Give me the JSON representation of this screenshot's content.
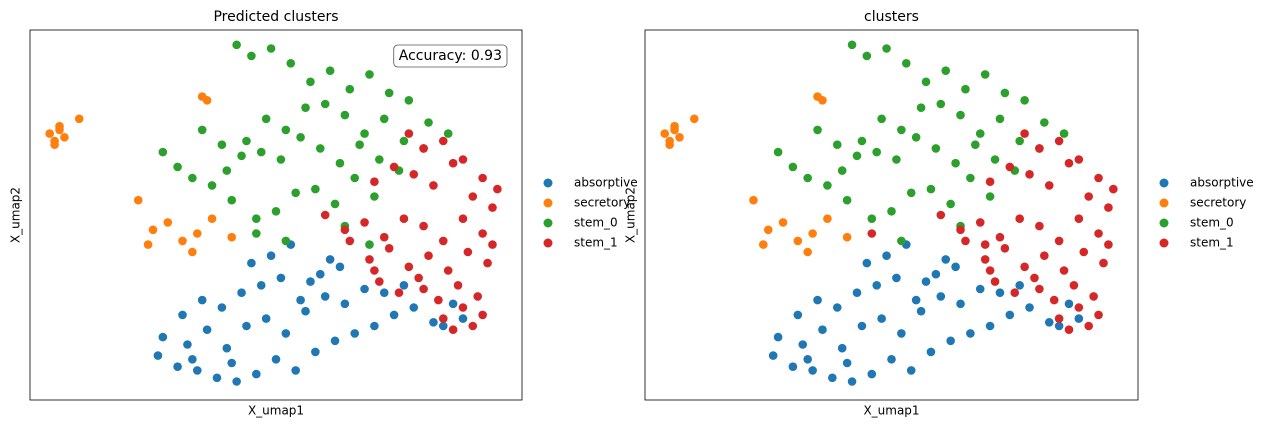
{
  "chart_data": [
    {
      "type": "scatter",
      "title": "Predicted clusters",
      "xlabel": "X_umap1",
      "ylabel": "X_umap2",
      "annotation": "Accuracy: 0.93",
      "xlim": [
        0,
        10
      ],
      "ylim": [
        0,
        10
      ],
      "series": [
        {
          "name": "absorptive",
          "color": "#1f77b4",
          "x": [
            2.6,
            3.0,
            3.4,
            3.8,
            4.2,
            4.6,
            5.0,
            5.4,
            5.8,
            6.2,
            6.6,
            7.0,
            7.4,
            7.8,
            8.2,
            8.6,
            2.7,
            3.2,
            3.6,
            4.0,
            4.4,
            4.8,
            5.2,
            5.6,
            6.0,
            6.4,
            6.8,
            7.2,
            3.1,
            3.5,
            3.9,
            4.3,
            4.7,
            5.1,
            5.5,
            5.9,
            6.3,
            4.5,
            4.9,
            5.3,
            5.7,
            6.1,
            3.3,
            4.1,
            8.8,
            8.4,
            7.6
          ],
          "values": [
            1.2,
            0.9,
            0.8,
            0.6,
            0.5,
            0.7,
            1.1,
            0.8,
            1.3,
            1.6,
            1.8,
            2.0,
            2.3,
            2.5,
            2.1,
            2.6,
            1.7,
            1.5,
            1.9,
            1.4,
            2.0,
            2.2,
            1.8,
            2.4,
            2.8,
            2.6,
            3.0,
            2.9,
            2.3,
            2.7,
            2.5,
            2.9,
            3.1,
            3.3,
            2.7,
            3.4,
            3.6,
            3.7,
            3.9,
            4.2,
            3.2,
            3.8,
            1.1,
            1.0,
            2.2,
            2.0,
            3.1
          ]
        },
        {
          "name": "secretory",
          "color": "#ff7f0e",
          "x": [
            0.4,
            0.5,
            0.6,
            0.7,
            0.5,
            0.6,
            1.0,
            3.5,
            3.6,
            2.2,
            2.5,
            2.8,
            3.1,
            3.4,
            3.7,
            4.1,
            2.4,
            3.3
          ],
          "values": [
            7.2,
            7.0,
            7.3,
            7.1,
            6.9,
            7.4,
            7.6,
            8.2,
            8.1,
            5.4,
            4.6,
            4.8,
            4.3,
            4.5,
            4.9,
            4.4,
            4.2,
            4.0
          ]
        },
        {
          "name": "stem_0",
          "color": "#2ca02c",
          "x": [
            4.2,
            4.5,
            4.9,
            5.3,
            5.7,
            6.1,
            6.5,
            6.9,
            7.3,
            7.7,
            8.1,
            8.5,
            2.7,
            3.0,
            3.3,
            3.7,
            4.0,
            4.4,
            4.8,
            5.2,
            5.6,
            6.0,
            6.4,
            6.8,
            7.2,
            7.6,
            8.0,
            3.5,
            3.9,
            4.3,
            4.7,
            5.1,
            5.5,
            5.9,
            6.3,
            6.7,
            7.1,
            7.5,
            4.1,
            4.6,
            5.0,
            5.4,
            5.8,
            6.2,
            6.6,
            7.0,
            4.6,
            5.2,
            6.4,
            6.9
          ],
          "values": [
            9.6,
            9.3,
            9.5,
            9.1,
            8.6,
            8.9,
            8.4,
            8.8,
            8.3,
            8.1,
            7.5,
            7.2,
            6.7,
            6.3,
            6.0,
            5.8,
            6.2,
            7.0,
            7.6,
            7.3,
            7.9,
            8.0,
            7.7,
            7.2,
            7.6,
            7.0,
            6.8,
            7.3,
            6.9,
            6.6,
            6.7,
            6.5,
            7.1,
            6.8,
            6.4,
            6.9,
            6.5,
            6.2,
            5.4,
            4.9,
            5.1,
            5.6,
            5.7,
            5.3,
            6.0,
            5.5,
            4.5,
            4.3,
            4.7,
            4.2
          ]
        },
        {
          "name": "stem_1",
          "color": "#d62728",
          "x": [
            7.7,
            8.0,
            8.4,
            8.8,
            9.2,
            9.5,
            7.0,
            7.4,
            7.8,
            8.2,
            8.6,
            9.0,
            9.4,
            6.0,
            6.4,
            6.8,
            7.2,
            7.6,
            8.0,
            8.4,
            8.8,
            9.2,
            6.9,
            7.3,
            7.7,
            8.1,
            8.5,
            8.9,
            9.3,
            7.1,
            7.5,
            7.9,
            8.3,
            8.7,
            9.1,
            8.4,
            8.8,
            9.2,
            8.6,
            9.0,
            6.5,
            7.0,
            8.0,
            9.4
          ],
          "values": [
            7.2,
            6.8,
            7.0,
            6.5,
            6.0,
            5.7,
            5.9,
            6.3,
            6.1,
            5.8,
            6.4,
            5.5,
            5.2,
            5.0,
            4.6,
            4.8,
            4.4,
            4.9,
            4.7,
            4.3,
            4.9,
            4.5,
            3.8,
            4.1,
            3.6,
            3.9,
            3.5,
            4.0,
            3.7,
            3.2,
            2.9,
            3.3,
            2.7,
            3.1,
            2.8,
            2.2,
            2.5,
            2.3,
            1.9,
            2.0,
            4.3,
            3.5,
            3.0,
            4.2
          ]
        }
      ]
    },
    {
      "type": "scatter",
      "title": "clusters",
      "xlabel": "X_umap1",
      "ylabel": "X_umap2",
      "xlim": [
        0,
        10
      ],
      "ylim": [
        0,
        10
      ],
      "series": [
        {
          "name": "absorptive",
          "color": "#1f77b4",
          "x": [
            2.6,
            3.0,
            3.4,
            3.8,
            4.2,
            4.6,
            5.0,
            5.4,
            5.8,
            6.2,
            6.6,
            7.0,
            7.4,
            7.8,
            8.2,
            8.6,
            2.7,
            3.2,
            3.6,
            4.0,
            4.4,
            4.8,
            5.2,
            5.6,
            6.0,
            6.4,
            6.8,
            7.2,
            3.1,
            3.5,
            3.9,
            4.3,
            4.7,
            5.1,
            5.5,
            5.9,
            6.3,
            4.5,
            4.9,
            5.3,
            5.7,
            6.1,
            3.3,
            4.1,
            8.8,
            8.4,
            7.6
          ],
          "values": [
            1.2,
            0.9,
            0.8,
            0.6,
            0.5,
            0.7,
            1.1,
            0.8,
            1.3,
            1.6,
            1.8,
            2.0,
            2.3,
            2.5,
            2.1,
            2.6,
            1.7,
            1.5,
            1.9,
            1.4,
            2.0,
            2.2,
            1.8,
            2.4,
            2.8,
            2.6,
            3.0,
            2.9,
            2.3,
            2.7,
            2.5,
            2.9,
            3.1,
            3.3,
            2.7,
            3.4,
            3.6,
            3.7,
            3.9,
            4.2,
            3.2,
            3.8,
            1.1,
            1.0,
            2.2,
            2.0,
            3.1
          ]
        },
        {
          "name": "secretory",
          "color": "#ff7f0e",
          "x": [
            0.4,
            0.5,
            0.6,
            0.7,
            0.5,
            0.6,
            1.0,
            3.5,
            3.6,
            2.2,
            2.5,
            2.8,
            3.1,
            3.4,
            3.7,
            4.1,
            2.4,
            3.3
          ],
          "values": [
            7.2,
            7.0,
            7.3,
            7.1,
            6.9,
            7.4,
            7.6,
            8.2,
            8.1,
            5.4,
            4.6,
            4.8,
            4.3,
            4.5,
            4.9,
            4.4,
            4.2,
            4.0
          ]
        },
        {
          "name": "stem_0",
          "color": "#2ca02c",
          "x": [
            4.2,
            4.5,
            4.9,
            5.3,
            5.7,
            6.1,
            6.5,
            6.9,
            7.3,
            7.7,
            8.1,
            8.5,
            2.7,
            3.0,
            3.3,
            3.7,
            4.0,
            4.4,
            4.8,
            5.2,
            5.6,
            6.0,
            6.4,
            6.8,
            7.2,
            7.6,
            8.0,
            3.5,
            3.9,
            4.3,
            4.7,
            5.1,
            5.5,
            5.9,
            6.3,
            6.7,
            7.1,
            7.5,
            4.1,
            4.6,
            5.0,
            5.4,
            5.8,
            6.2,
            6.6,
            7.0,
            5.2,
            6.4
          ],
          "values": [
            9.6,
            9.3,
            9.5,
            9.1,
            8.6,
            8.9,
            8.4,
            8.8,
            8.3,
            8.1,
            7.5,
            7.2,
            6.7,
            6.3,
            6.0,
            5.8,
            6.2,
            7.0,
            7.6,
            7.3,
            7.9,
            8.0,
            7.7,
            7.2,
            7.6,
            7.0,
            6.8,
            7.3,
            6.9,
            6.6,
            6.7,
            6.5,
            7.1,
            6.8,
            6.4,
            6.9,
            6.5,
            6.2,
            5.4,
            4.9,
            5.1,
            5.6,
            5.7,
            5.3,
            6.0,
            5.5,
            4.3,
            4.7
          ]
        },
        {
          "name": "stem_1",
          "color": "#d62728",
          "x": [
            7.7,
            8.0,
            8.4,
            8.8,
            9.2,
            9.5,
            7.0,
            7.4,
            7.8,
            8.2,
            8.6,
            9.0,
            9.4,
            6.0,
            6.4,
            6.8,
            7.2,
            7.6,
            8.0,
            8.4,
            8.8,
            9.2,
            6.9,
            7.3,
            7.7,
            8.1,
            8.5,
            8.9,
            9.3,
            7.1,
            7.5,
            7.9,
            8.3,
            8.7,
            9.1,
            8.4,
            8.8,
            9.2,
            8.6,
            9.0,
            6.5,
            7.0,
            8.0,
            9.4,
            4.6,
            6.9
          ],
          "values": [
            7.2,
            6.8,
            7.0,
            6.5,
            6.0,
            5.7,
            5.9,
            6.3,
            6.1,
            5.8,
            6.4,
            5.5,
            5.2,
            5.0,
            4.6,
            4.8,
            4.4,
            4.9,
            4.7,
            4.3,
            4.9,
            4.5,
            3.8,
            4.1,
            3.6,
            3.9,
            3.5,
            4.0,
            3.7,
            3.2,
            2.9,
            3.3,
            2.7,
            3.1,
            2.8,
            2.2,
            2.5,
            2.3,
            1.9,
            2.0,
            4.3,
            3.5,
            3.0,
            4.2,
            4.5,
            4.2
          ]
        }
      ]
    }
  ]
}
